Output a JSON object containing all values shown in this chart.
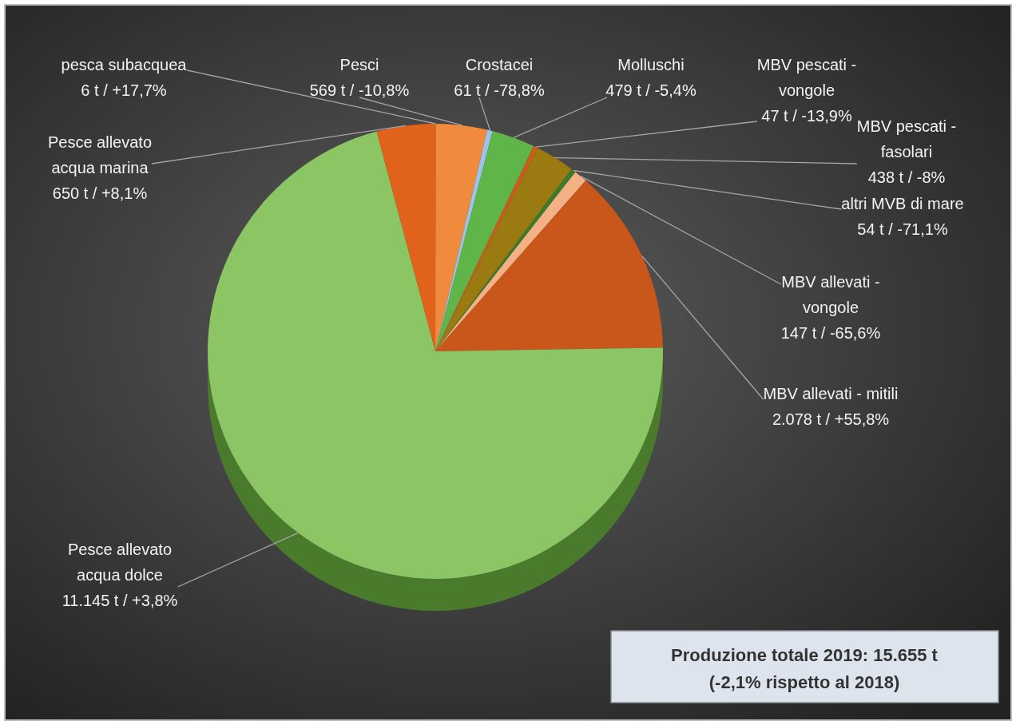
{
  "chart_data": {
    "type": "pie",
    "categories": [
      "pesca subacquea",
      "Pesci",
      "Crostacei",
      "Molluschi",
      "MBV pescati - vongole",
      "MBV pescati - fasolari",
      "altri MVB di mare",
      "MBV allevati - vongole",
      "MBV allevati - mitili",
      "Pesce allevato acqua dolce",
      "Pesce allevato acqua marina"
    ],
    "values": [
      6,
      569,
      61,
      479,
      47,
      438,
      54,
      147,
      2078,
      11145,
      650
    ],
    "value_labels": [
      "6 t / +17,7%",
      "569 t / -10,8%",
      "61 t / -78,8%",
      "479 t / -5,4%",
      "47 t / -13,9%",
      "438 t / -8%",
      "54 t / -71,1%",
      "147 t / -65,6%",
      "2.078 t / +55,8%",
      "11.145 t / +3,8%",
      "650 t / +8,1%"
    ],
    "colors": [
      "#e36c0a",
      "#f08a3c",
      "#9dc3e6",
      "#5fb548",
      "#d05a1a",
      "#9c7a12",
      "#3f7a2a",
      "#f4b183",
      "#c9561a",
      "#8cc564",
      "#e0621b"
    ],
    "annotations": [
      "Produzione totale 2019: 15.655 t",
      "(-2,1% rispetto al 2018)"
    ]
  }
}
